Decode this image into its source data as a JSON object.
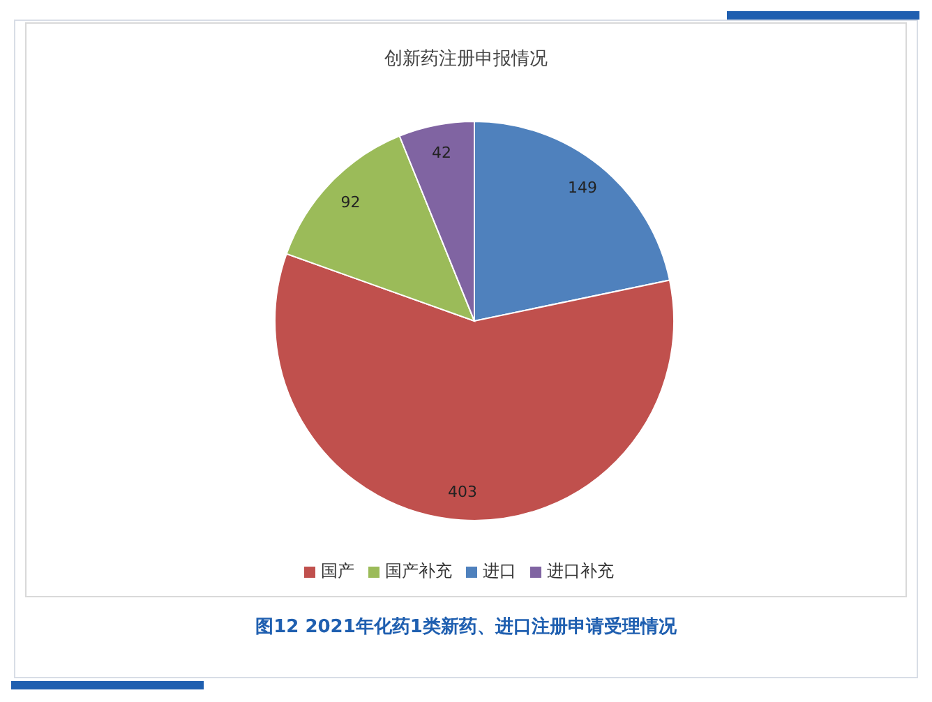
{
  "chart_data": {
    "type": "pie",
    "title": "创新药注册申报情况",
    "categories": [
      "进口",
      "国产",
      "国产补充",
      "进口补充"
    ],
    "values": [
      149,
      403,
      92,
      42
    ],
    "colors": [
      "#4f81bd",
      "#c0504d",
      "#9bbb59",
      "#8064a2"
    ],
    "data_labels": true,
    "legend": "bottom",
    "annotations": [
      "图12 2021年化药1类新药、进口注册申请受理情况"
    ]
  }
}
